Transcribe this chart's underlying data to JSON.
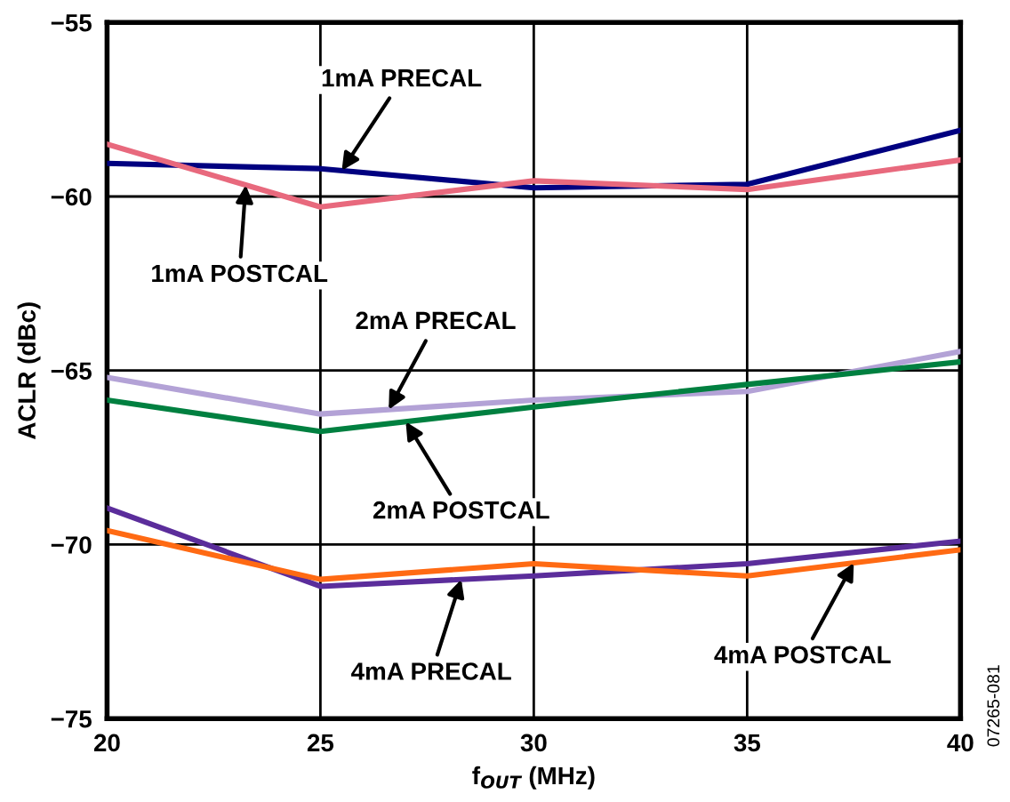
{
  "chart_data": {
    "type": "line",
    "xlabel": "f$_{OUT}$ (MHz)",
    "ylabel": "ACLR (dBc)",
    "x": [
      20,
      25,
      30,
      35,
      40
    ],
    "series": [
      {
        "name": "1mA PRECAL",
        "color": "#000080",
        "values": [
          -59.05,
          -59.2,
          -59.75,
          -59.65,
          -58.1
        ]
      },
      {
        "name": "1mA POSTCAL",
        "color": "#e8697d",
        "values": [
          -58.5,
          -60.3,
          -59.55,
          -59.8,
          -58.95
        ]
      },
      {
        "name": "2mA PRECAL",
        "color": "#b3a2d6",
        "values": [
          -65.2,
          -66.25,
          -65.85,
          -65.6,
          -64.45
        ]
      },
      {
        "name": "2mA POSTCAL",
        "color": "#008040",
        "values": [
          -65.85,
          -66.75,
          -66.05,
          -65.4,
          -64.75
        ]
      },
      {
        "name": "4mA PRECAL",
        "color": "#5b2d9b",
        "values": [
          -68.95,
          -71.2,
          -70.9,
          -70.55,
          -69.9
        ]
      },
      {
        "name": "4mA POSTCAL",
        "color": "#ff6a13",
        "values": [
          -69.6,
          -71.0,
          -70.55,
          -70.9,
          -70.15
        ]
      }
    ],
    "annotations": [
      "07265-081"
    ],
    "xlim": [
      20,
      40
    ],
    "xticks": [
      20,
      25,
      30,
      35,
      40
    ],
    "ylim": [
      -75,
      -55
    ],
    "yticks": [
      -75,
      -70,
      -65,
      -60,
      -55
    ],
    "grid": true,
    "legend": false,
    "marker": "none",
    "line_style": "solid"
  }
}
